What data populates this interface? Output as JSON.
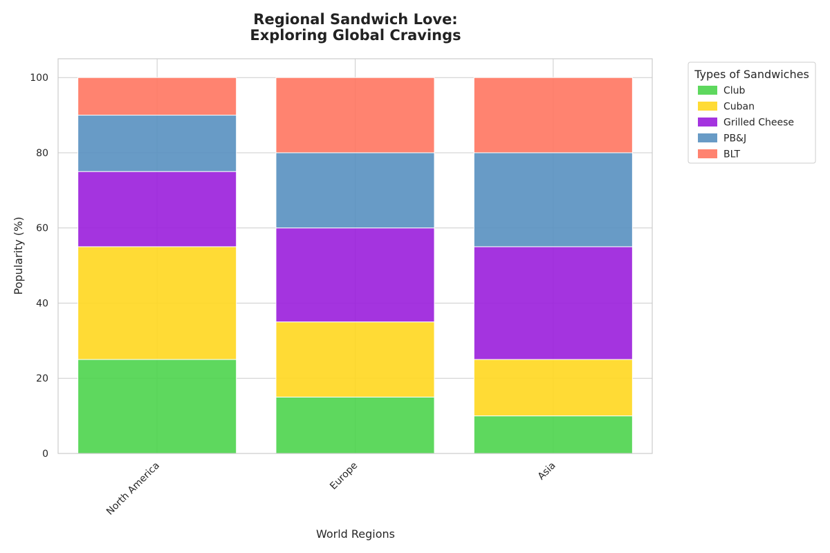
{
  "chart_data": {
    "type": "bar",
    "stacked": true,
    "title_lines": [
      "Regional Sandwich Love:",
      "Exploring Global Cravings"
    ],
    "xlabel": "World Regions",
    "ylabel": "Popularity (%)",
    "ylim": [
      0,
      105
    ],
    "yticks": [
      0,
      20,
      40,
      60,
      80,
      100
    ],
    "grid": true,
    "categories": [
      "North America",
      "Europe",
      "Asia"
    ],
    "series": [
      {
        "name": "Club",
        "color": "#4cd44c",
        "values": [
          25,
          15,
          10
        ]
      },
      {
        "name": "Cuban",
        "color": "#ffd71f",
        "values": [
          30,
          20,
          15
        ]
      },
      {
        "name": "Grilled Cheese",
        "color": "#9a1edb",
        "values": [
          20,
          25,
          30
        ]
      },
      {
        "name": "PB&J",
        "color": "#5890c0",
        "values": [
          15,
          20,
          25
        ]
      },
      {
        "name": "BLT",
        "color": "#ff7560",
        "values": [
          10,
          20,
          20
        ]
      }
    ],
    "legend": {
      "title": "Types of Sandwiches",
      "placement": "outside-top-right"
    }
  }
}
